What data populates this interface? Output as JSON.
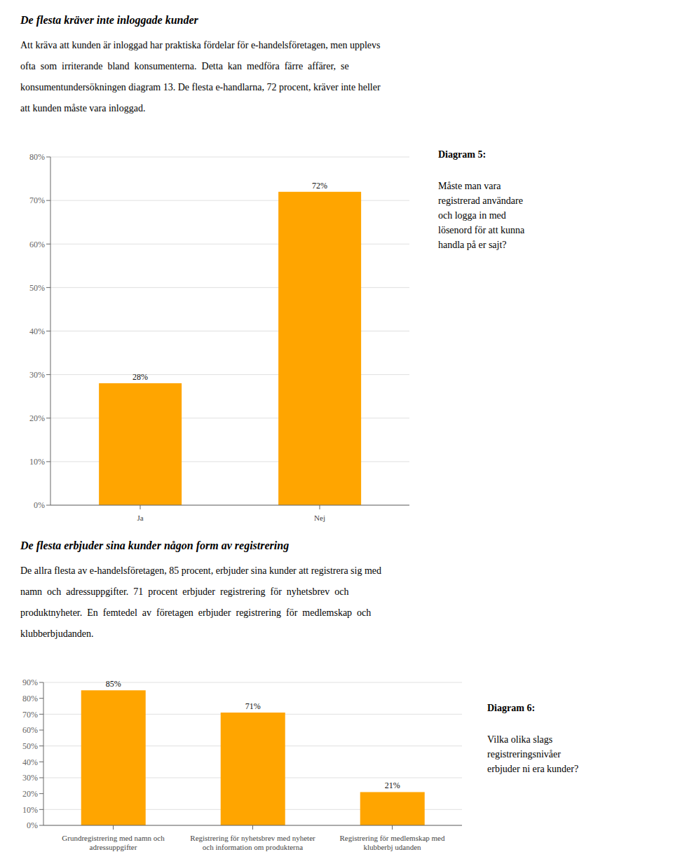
{
  "chart_data": [
    {
      "type": "bar",
      "title": "De flesta kräver inte inloggade kunder",
      "subtitle": "Att kräva att kunden är inloggad har praktiska fördelar för e-handelsföretagen, men upplevs\nofta  som  irriterande  bland  konsumenterna.  Detta  kan  medföra  färre  affärer,  se\nkonsumentundersökningen diagram 13. De flesta e-handlarna, 72 procent, kräver inte heller\natt kunden måste vara inloggad.",
      "annotations": [
        "Diagram 5:",
        "Måste man vara\nregistrerad användare\noch logga in med\nlösenord för att kunna\nhandla på er sajt?"
      ],
      "categories": [
        "Ja",
        "Nej"
      ],
      "values": [
        28,
        72
      ],
      "value_labels": [
        "28%",
        "72%"
      ],
      "data_labels": true,
      "color": "#FFA500",
      "grid": true,
      "ylim": [
        0,
        80
      ],
      "yticks": [
        {
          "value": 0,
          "label": "0%"
        },
        {
          "value": 10,
          "label": "10%"
        },
        {
          "value": 20,
          "label": "20%"
        },
        {
          "value": 30,
          "label": "30%"
        },
        {
          "value": 40,
          "label": "40%"
        },
        {
          "value": 50,
          "label": "50%"
        },
        {
          "value": 60,
          "label": "60%"
        },
        {
          "value": 70,
          "label": "70%"
        },
        {
          "value": 80,
          "label": "80%"
        }
      ]
    },
    {
      "type": "bar",
      "title": "De flesta erbjuder sina kunder någon form av registrering",
      "subtitle": "De allra flesta av e-handelsföretagen, 85 procent, erbjuder sina kunder att registrera sig med\nnamn  och  adressuppgifter.  71  procent  erbjuder  registrering  för  nyhetsbrev  och\nproduktnyheter.  En  femtedel  av  företagen  erbjuder  registrering  för  medlemskap  och\nklubberbjudanden.",
      "annotations": [
        "Diagram 6:",
        "Vilka olika slags\nregistreringsnivåer\nerbjuder ni era kunder?"
      ],
      "categories": [
        "Grundregistrering med namn och\nadressuppgifter",
        "Registrering för nyhetsbrev med nyheter\noch information om produkterna",
        "Registrering för medlemskap med\nklubberbj udanden"
      ],
      "values": [
        85,
        71,
        21
      ],
      "value_labels": [
        "85%",
        "71%",
        "21%"
      ],
      "data_labels": true,
      "color": "#FFA500",
      "grid": true,
      "ylim": [
        0,
        90
      ],
      "yticks": [
        {
          "value": 0,
          "label": "0%"
        },
        {
          "value": 10,
          "label": "10%"
        },
        {
          "value": 20,
          "label": "20%"
        },
        {
          "value": 30,
          "label": "30%"
        },
        {
          "value": 40,
          "label": "40%"
        },
        {
          "value": 50,
          "label": "50%"
        },
        {
          "value": 60,
          "label": "60%"
        },
        {
          "value": 70,
          "label": "70%"
        },
        {
          "value": 80,
          "label": "80%"
        },
        {
          "value": 90,
          "label": "90%"
        }
      ]
    }
  ]
}
